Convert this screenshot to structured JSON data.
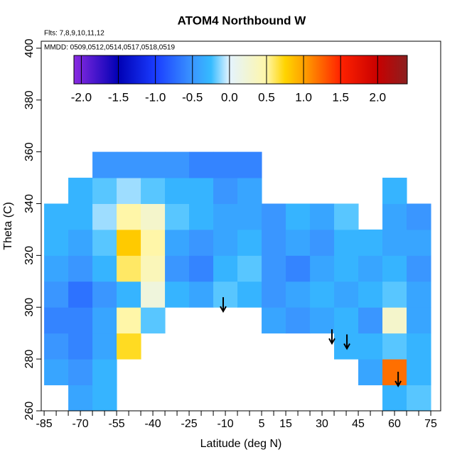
{
  "chart_data": {
    "type": "heatmap",
    "title": "ATOM4 Northbound W",
    "subtitle": "Flts: 7,8,9,10,11,12",
    "annotation": "MMDD: 0509,0512,0514,0517,0518,0519",
    "xlabel": "Latitude (deg N)",
    "ylabel": "Theta (C)",
    "xlim": [
      -86.2,
      79.1
    ],
    "ylim": [
      260,
      402.7
    ],
    "xticks": [
      -85,
      -70,
      -55,
      -40,
      -25,
      -10,
      5,
      15,
      30,
      45,
      60,
      75
    ],
    "xminorticks": [
      -80,
      -75,
      -65,
      -60,
      -50,
      -45,
      -35,
      -30,
      -20,
      -15,
      -5,
      0,
      10,
      20,
      25,
      35,
      40,
      50,
      55,
      65,
      70
    ],
    "yticks": [
      260,
      280,
      300,
      320,
      340,
      360,
      380,
      400
    ],
    "x": [
      -80,
      -70,
      -60,
      -50,
      -40,
      -30,
      -20,
      -10,
      0,
      10,
      20,
      30,
      40,
      50,
      60,
      70
    ],
    "y": [
      265,
      275,
      285,
      295,
      305,
      315,
      325,
      335,
      345,
      355
    ],
    "cell_width": 10,
    "cell_height": 10,
    "z": [
      [
        null,
        -0.4,
        -0.3,
        null,
        null,
        null,
        null,
        null,
        null,
        null,
        null,
        null,
        null,
        null,
        -0.3,
        -0.2
      ],
      [
        -0.4,
        -0.5,
        -0.3,
        null,
        null,
        null,
        null,
        null,
        null,
        null,
        null,
        null,
        null,
        -0.4,
        1.2,
        -0.3
      ],
      [
        -0.5,
        -0.6,
        -0.4,
        0.7,
        null,
        null,
        null,
        null,
        null,
        null,
        null,
        null,
        -0.3,
        -0.3,
        -0.2,
        -0.3
      ],
      [
        -0.6,
        -0.6,
        -0.4,
        0.5,
        -0.2,
        null,
        null,
        null,
        null,
        -0.4,
        -0.5,
        -0.4,
        -0.3,
        -0.5,
        0.3,
        -0.4
      ],
      [
        -0.5,
        -0.7,
        -0.5,
        -0.3,
        0.2,
        -0.3,
        -0.4,
        -0.2,
        -0.3,
        -0.5,
        -0.4,
        -0.3,
        -0.4,
        -0.3,
        -0.2,
        -0.4
      ],
      [
        -0.4,
        -0.5,
        -0.3,
        0.6,
        0.4,
        -0.5,
        -0.6,
        -0.3,
        -0.2,
        -0.5,
        -0.6,
        -0.4,
        -0.3,
        -0.4,
        -0.3,
        -0.5
      ],
      [
        -0.3,
        -0.4,
        -0.2,
        0.8,
        0.5,
        -0.4,
        -0.5,
        -0.4,
        -0.3,
        -0.5,
        -0.4,
        -0.5,
        -0.3,
        -0.3,
        -0.4,
        -0.4
      ],
      [
        -0.3,
        -0.3,
        -0.1,
        0.5,
        0.3,
        -0.2,
        -0.3,
        -0.4,
        -0.4,
        -0.5,
        -0.3,
        -0.4,
        -0.2,
        null,
        -0.4,
        -0.5
      ],
      [
        null,
        -0.3,
        -0.2,
        -0.1,
        -0.2,
        -0.3,
        -0.3,
        -0.5,
        -0.4,
        null,
        null,
        null,
        null,
        null,
        -0.3,
        null
      ],
      [
        null,
        null,
        -0.5,
        -0.5,
        -0.5,
        -0.5,
        -0.6,
        -0.6,
        -0.6,
        null,
        null,
        null,
        null,
        null,
        null,
        null
      ]
    ],
    "colorscale": [
      {
        "value": -2.1,
        "color": "#8a2be2"
      },
      {
        "value": -1.5,
        "color": "#0000b4"
      },
      {
        "value": -1.0,
        "color": "#1a3cff"
      },
      {
        "value": -0.5,
        "color": "#3a96ff"
      },
      {
        "value": -0.25,
        "color": "#35bbff"
      },
      {
        "value": 0.0,
        "color": "#e4f4ff"
      },
      {
        "value": 0.5,
        "color": "#fff6a8"
      },
      {
        "value": 0.75,
        "color": "#ffd400"
      },
      {
        "value": 1.0,
        "color": "#ffa200"
      },
      {
        "value": 1.5,
        "color": "#ff2200"
      },
      {
        "value": 2.0,
        "color": "#c80000"
      },
      {
        "value": 2.4,
        "color": "#8b2020"
      }
    ],
    "colorbar_lim": [
      -2.1,
      2.4
    ],
    "colorbar_ticks": [
      {
        "value": -2.0,
        "label": "-2.0"
      },
      {
        "value": -1.5,
        "label": "-1.5"
      },
      {
        "value": -1.0,
        "label": "-1.0"
      },
      {
        "value": -0.5,
        "label": "-0.5"
      },
      {
        "value": 0.0,
        "label": "0.0"
      },
      {
        "value": 0.5,
        "label": "0.5"
      },
      {
        "value": 1.0,
        "label": "1.0"
      },
      {
        "value": 1.5,
        "label": "1.5"
      },
      {
        "value": 2.0,
        "label": "2.0"
      }
    ],
    "arrows": [
      {
        "x": -10.9,
        "y": 298.4
      },
      {
        "x": 34.1,
        "y": 286
      },
      {
        "x": 40.3,
        "y": 284
      },
      {
        "x": 61.5,
        "y": 269.6
      }
    ]
  }
}
